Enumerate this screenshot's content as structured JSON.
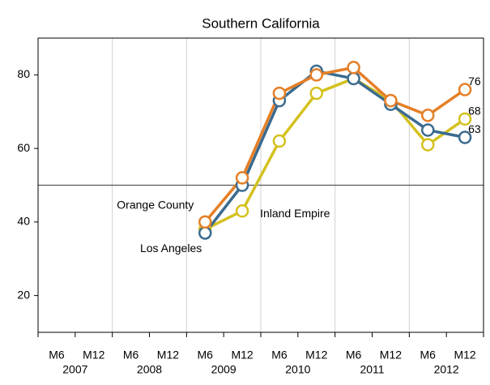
{
  "chart_data": {
    "type": "line",
    "title": "Southern California",
    "categories": [
      "M6",
      "M12",
      "M6",
      "M12",
      "M6",
      "M12",
      "M6",
      "M12",
      "M6",
      "M12",
      "M6",
      "M12"
    ],
    "years": [
      "2007",
      "2008",
      "2009",
      "2010",
      "2011",
      "2012"
    ],
    "series": [
      {
        "name": "Inland Empire",
        "color": "#d4c11e",
        "values": [
          null,
          null,
          null,
          null,
          38,
          43,
          62,
          75,
          79,
          73,
          61,
          68
        ]
      },
      {
        "name": "Los Angeles",
        "color": "#3b6b8f",
        "values": [
          null,
          null,
          null,
          null,
          37,
          50,
          73,
          81,
          79,
          72,
          65,
          63
        ]
      },
      {
        "name": "Orange County",
        "color": "#e57f27",
        "values": [
          null,
          null,
          null,
          null,
          40,
          52,
          75,
          80,
          82,
          73,
          69,
          76
        ]
      }
    ],
    "ylim": [
      10,
      90
    ],
    "yticks": [
      20,
      40,
      60,
      80
    ],
    "reference_line": 50,
    "year_grid": true,
    "end_labels": true
  }
}
